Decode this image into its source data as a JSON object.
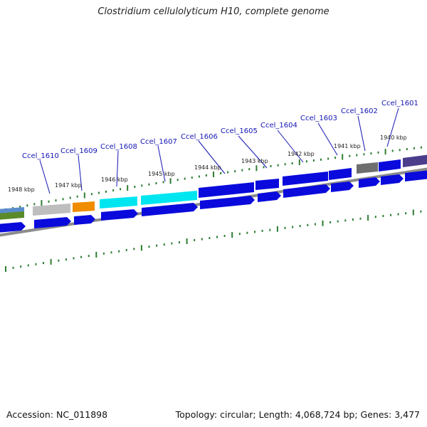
{
  "title": "Clostridium cellulolyticum H10, complete genome",
  "footer": {
    "accession": "Accession: NC_011898",
    "summary": "Topology: circular; Length: 4,068,724 bp; Genes: 3,477"
  },
  "colors": {
    "cds_blue": "#0a0adc",
    "cyan": "#00e6f0",
    "orange": "#f08c00",
    "light_gray": "#bebebe",
    "dark_gray": "#6e6e6e",
    "purple": "#4b3c8c",
    "backbone": "#8c8c8c",
    "tick": "#2e7d32",
    "label": "#1414b4"
  },
  "gene_labels": [
    {
      "text": "Ccel_1610"
    },
    {
      "text": "Ccel_1609"
    },
    {
      "text": "Ccel_1608"
    },
    {
      "text": "Ccel_1607"
    },
    {
      "text": "Ccel_1606"
    },
    {
      "text": "Ccel_1605"
    },
    {
      "text": "Ccel_1604"
    },
    {
      "text": "Ccel_1603"
    },
    {
      "text": "Ccel_1602"
    },
    {
      "text": "Ccel_1601"
    }
  ],
  "kbp_labels": [
    {
      "text": "1948 kbp"
    },
    {
      "text": "1947 kbp"
    },
    {
      "text": "1946 kbp"
    },
    {
      "text": "1945 kbp"
    },
    {
      "text": "1944 kbp"
    },
    {
      "text": "1943 kbp"
    },
    {
      "text": "1942 kbp"
    },
    {
      "text": "1941 kbp"
    },
    {
      "text": "1940 kbp"
    }
  ]
}
